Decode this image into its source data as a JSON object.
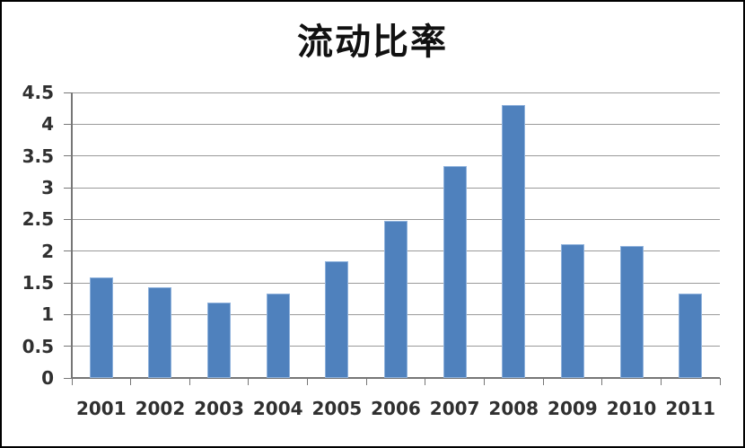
{
  "page": {
    "background_color": "#ffffff",
    "frame_color": "#000000"
  },
  "chart_data": {
    "type": "bar",
    "title": "流动比率",
    "categories": [
      "2001",
      "2002",
      "2003",
      "2004",
      "2005",
      "2006",
      "2007",
      "2008",
      "2009",
      "2010",
      "2011"
    ],
    "values": [
      1.58,
      1.43,
      1.19,
      1.33,
      1.84,
      2.47,
      3.34,
      4.3,
      2.11,
      2.08,
      1.33
    ],
    "xlabel": "",
    "ylabel": "",
    "ylim": [
      0,
      4.5
    ],
    "ytick_labels": [
      "0",
      "0.5",
      "1",
      "1.5",
      "2",
      "2.5",
      "3",
      "3.5",
      "4",
      "4.5"
    ],
    "grid": true,
    "legend": false,
    "colors": {
      "bar_fill": "#4f81bd",
      "bar_border": "#8fb2dc",
      "gridline": "#9a9a9a",
      "axis": "#767676",
      "tick_label": "#303030",
      "title": "#111111"
    }
  }
}
